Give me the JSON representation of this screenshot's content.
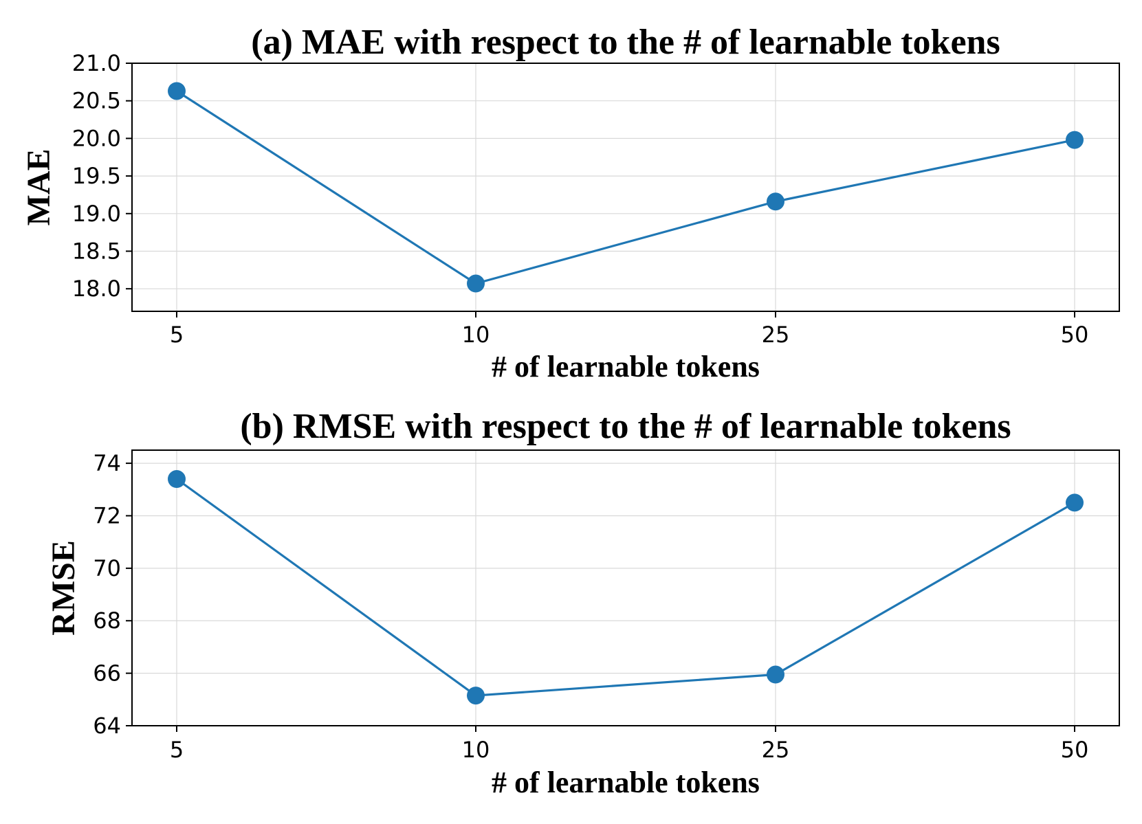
{
  "chart_data": [
    {
      "type": "line",
      "title": "(a) MAE with respect to the # of learnable tokens",
      "xlabel": "# of learnable tokens",
      "ylabel": "MAE",
      "categories": [
        "5",
        "10",
        "25",
        "50"
      ],
      "series": [
        {
          "values": [
            20.63,
            18.07,
            19.16,
            19.98
          ]
        }
      ],
      "ylim": [
        17.7,
        21.0
      ],
      "yticks": [
        18.0,
        18.5,
        19.0,
        19.5,
        20.0,
        20.5,
        21.0
      ],
      "ytick_labels": [
        "18.0",
        "18.5",
        "19.0",
        "19.5",
        "20.0",
        "20.5",
        "21.0"
      ],
      "grid": true,
      "marker": "circle",
      "color": "#1f77b4"
    },
    {
      "type": "line",
      "title": "(b) RMSE with respect to the # of learnable tokens",
      "xlabel": "# of learnable tokens",
      "ylabel": "RMSE",
      "categories": [
        "5",
        "10",
        "25",
        "50"
      ],
      "series": [
        {
          "values": [
            73.4,
            65.15,
            65.95,
            72.5
          ]
        }
      ],
      "ylim": [
        64.0,
        74.5
      ],
      "yticks": [
        64,
        66,
        68,
        70,
        72,
        74
      ],
      "ytick_labels": [
        "64",
        "66",
        "68",
        "70",
        "72",
        "74"
      ],
      "grid": true,
      "marker": "circle",
      "color": "#1f77b4"
    }
  ]
}
